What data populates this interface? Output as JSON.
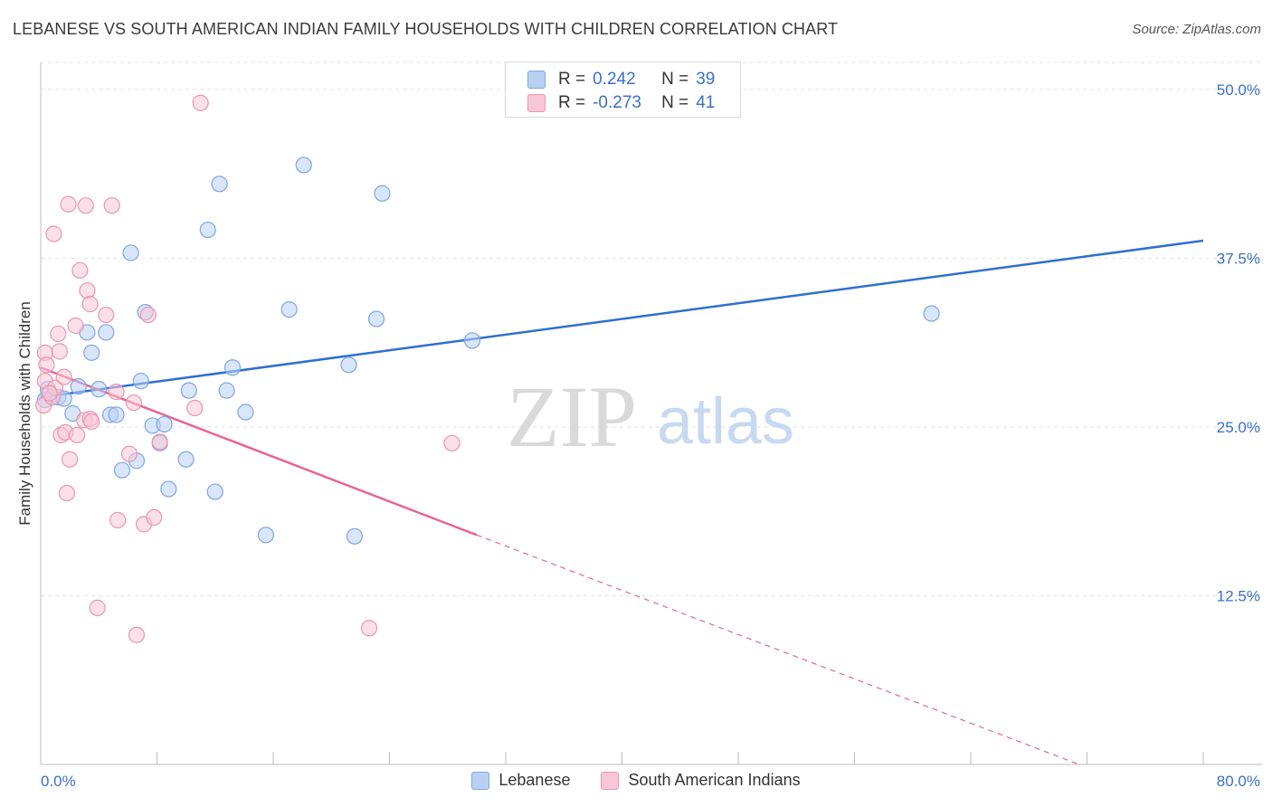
{
  "title": "LEBANESE VS SOUTH AMERICAN INDIAN FAMILY HOUSEHOLDS WITH CHILDREN CORRELATION CHART",
  "source": "Source: ZipAtlas.com",
  "watermark": {
    "zip": "ZIP",
    "atlas": "atlas"
  },
  "legend_stats": [
    {
      "r_label": "R =",
      "r_value": "0.242",
      "n_label": "N =",
      "n_value": "39"
    },
    {
      "r_label": "R =",
      "r_value": "-0.273",
      "n_label": "N =",
      "n_value": "41"
    }
  ],
  "colors": {
    "blue": "#2f6fd0",
    "blue_fill": "#b9d0f3",
    "pink": "#e8658f",
    "pink_fill": "#f8c6d6",
    "axis_text": "#3a6fc8"
  },
  "chart_data": {
    "type": "scatter",
    "title": "LEBANESE VS SOUTH AMERICAN INDIAN FAMILY HOUSEHOLDS WITH CHILDREN CORRELATION CHART",
    "xlabel": "",
    "ylabel": "Family Households with Children",
    "xlim": [
      0,
      80
    ],
    "ylim": [
      0,
      52
    ],
    "x_tick_labels": [
      "0.0%",
      "80.0%"
    ],
    "y_ticks": [
      12.5,
      25.0,
      37.5,
      50.0
    ],
    "y_tick_labels": [
      "12.5%",
      "25.0%",
      "37.5%",
      "50.0%"
    ],
    "legend": [
      "Lebanese",
      "South American Indians"
    ],
    "series": [
      {
        "name": "Lebanese",
        "points": [
          [
            0.3,
            27.0
          ],
          [
            0.5,
            27.8
          ],
          [
            0.8,
            27.2
          ],
          [
            1.2,
            27.2
          ],
          [
            1.6,
            27.1
          ],
          [
            2.2,
            26.0
          ],
          [
            2.6,
            28.0
          ],
          [
            3.2,
            32.0
          ],
          [
            3.5,
            30.5
          ],
          [
            4.0,
            27.8
          ],
          [
            4.5,
            32.0
          ],
          [
            4.8,
            25.9
          ],
          [
            5.2,
            25.9
          ],
          [
            5.6,
            21.8
          ],
          [
            6.2,
            37.9
          ],
          [
            6.6,
            22.5
          ],
          [
            6.9,
            28.4
          ],
          [
            7.2,
            33.5
          ],
          [
            7.7,
            25.1
          ],
          [
            8.2,
            23.8
          ],
          [
            8.5,
            25.2
          ],
          [
            8.8,
            20.4
          ],
          [
            10.0,
            22.6
          ],
          [
            10.2,
            27.7
          ],
          [
            11.5,
            39.6
          ],
          [
            12.0,
            20.2
          ],
          [
            12.3,
            43.0
          ],
          [
            12.8,
            27.7
          ],
          [
            13.2,
            29.4
          ],
          [
            14.1,
            26.1
          ],
          [
            15.5,
            17.0
          ],
          [
            17.1,
            33.7
          ],
          [
            18.1,
            44.4
          ],
          [
            21.2,
            29.6
          ],
          [
            21.6,
            16.9
          ],
          [
            23.1,
            33.0
          ],
          [
            23.5,
            42.3
          ],
          [
            29.7,
            31.4
          ],
          [
            61.3,
            33.4
          ]
        ],
        "trend": {
          "x": [
            0,
            80
          ],
          "y": [
            27.2,
            38.8
          ]
        }
      },
      {
        "name": "South American Indians",
        "points": [
          [
            0.2,
            26.6
          ],
          [
            0.3,
            28.4
          ],
          [
            0.3,
            30.5
          ],
          [
            0.4,
            29.6
          ],
          [
            0.8,
            27.2
          ],
          [
            0.9,
            39.3
          ],
          [
            1.0,
            27.9
          ],
          [
            1.2,
            31.9
          ],
          [
            1.3,
            30.6
          ],
          [
            1.4,
            24.4
          ],
          [
            1.6,
            28.7
          ],
          [
            1.7,
            24.6
          ],
          [
            1.8,
            20.1
          ],
          [
            1.9,
            41.5
          ],
          [
            2.0,
            22.6
          ],
          [
            2.4,
            32.5
          ],
          [
            2.5,
            24.4
          ],
          [
            2.7,
            36.6
          ],
          [
            3.0,
            25.5
          ],
          [
            3.1,
            41.4
          ],
          [
            3.2,
            35.1
          ],
          [
            3.4,
            25.6
          ],
          [
            3.4,
            34.1
          ],
          [
            3.5,
            25.4
          ],
          [
            3.9,
            11.6
          ],
          [
            4.5,
            33.3
          ],
          [
            4.9,
            41.4
          ],
          [
            5.2,
            27.6
          ],
          [
            5.3,
            18.1
          ],
          [
            6.1,
            23.0
          ],
          [
            6.4,
            26.8
          ],
          [
            6.6,
            9.6
          ],
          [
            7.1,
            17.8
          ],
          [
            7.4,
            33.3
          ],
          [
            7.8,
            18.3
          ],
          [
            8.2,
            23.9
          ],
          [
            10.6,
            26.4
          ],
          [
            11.0,
            49.0
          ],
          [
            22.6,
            10.1
          ],
          [
            28.3,
            23.8
          ],
          [
            0.6,
            27.5
          ]
        ],
        "trend": {
          "x": [
            0,
            30.0,
            80
          ],
          "y": [
            29.4,
            17.0,
            -3.5
          ]
        }
      }
    ]
  }
}
